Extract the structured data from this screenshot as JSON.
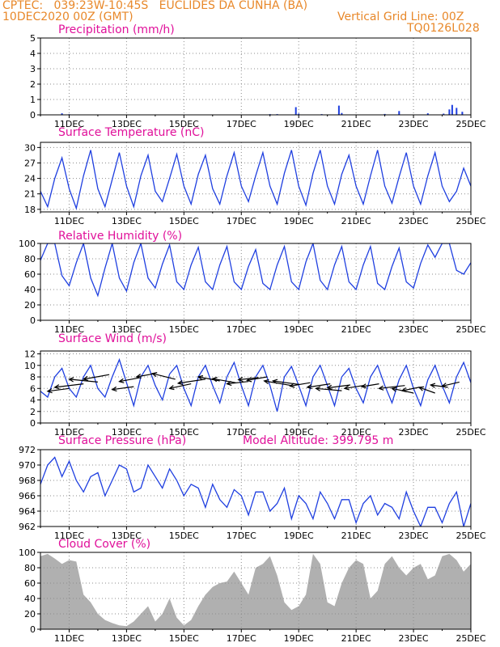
{
  "header": {
    "line1": "CPTEC:   039:23W-10:45S   EUCLIDES DA CUNHA (BA)",
    "line2": "10DEC2020 00Z (GMT)",
    "grid_note": "Vertical Grid Line: 00Z",
    "code": "TQ0126L028",
    "model_altitude": "Model Altitude: 399.795 m"
  },
  "colors": {
    "header": "#e8882a",
    "panel_title": "#e0109a",
    "series": "#1f3fe0",
    "wind_vector": "#000000",
    "cloud_fill": "#b0b0b0",
    "axis": "#000000",
    "grid": "#8c8c8c"
  },
  "chart_data": [
    {
      "id": "precip",
      "type": "bar",
      "title": "Precipitation (mm/h)",
      "ylim": [
        0,
        5
      ],
      "yticks": [
        0,
        1,
        2,
        3,
        4,
        5
      ],
      "xlim": [
        0,
        15
      ],
      "xticks": [
        {
          "x": 1,
          "label": "11DEC"
        },
        {
          "x": 3,
          "label": "13DEC"
        },
        {
          "x": 5,
          "label": "15DEC"
        },
        {
          "x": 7,
          "label": "17DEC"
        },
        {
          "x": 9,
          "label": "19DEC"
        },
        {
          "x": 11,
          "label": "21DEC"
        },
        {
          "x": 13,
          "label": "23DEC"
        },
        {
          "x": 15,
          "label": "25DEC"
        }
      ],
      "bars": [
        [
          0.75,
          0.1
        ],
        [
          1.0,
          0.04
        ],
        [
          8.0,
          0.05
        ],
        [
          8.25,
          0.05
        ],
        [
          8.9,
          0.5
        ],
        [
          9.0,
          0.08
        ],
        [
          9.8,
          0.05
        ],
        [
          10.4,
          0.6
        ],
        [
          10.5,
          0.12
        ],
        [
          12.0,
          0.06
        ],
        [
          12.5,
          0.25
        ],
        [
          13.5,
          0.1
        ],
        [
          14.05,
          0.08
        ],
        [
          14.25,
          0.35
        ],
        [
          14.35,
          0.65
        ],
        [
          14.5,
          0.45
        ],
        [
          14.7,
          0.2
        ]
      ]
    },
    {
      "id": "temp",
      "type": "line",
      "title": "Surface Temperature (nC)",
      "ylim": [
        17.5,
        31
      ],
      "yticks": [
        18,
        21,
        24,
        27,
        30
      ],
      "xlim": [
        0,
        15
      ],
      "xticks": [
        {
          "x": 1,
          "label": "11DEC"
        },
        {
          "x": 3,
          "label": "13DEC"
        },
        {
          "x": 5,
          "label": "15DEC"
        },
        {
          "x": 7,
          "label": "17DEC"
        },
        {
          "x": 9,
          "label": "19DEC"
        },
        {
          "x": 11,
          "label": "21DEC"
        },
        {
          "x": 13,
          "label": "23DEC"
        },
        {
          "x": 15,
          "label": "25DEC"
        }
      ],
      "x": [
        0,
        0.25,
        0.5,
        0.75,
        1.0,
        1.25,
        1.5,
        1.75,
        2.0,
        2.25,
        2.5,
        2.75,
        3.0,
        3.25,
        3.5,
        3.75,
        4.0,
        4.25,
        4.5,
        4.75,
        5.0,
        5.25,
        5.5,
        5.75,
        6.0,
        6.25,
        6.5,
        6.75,
        7.0,
        7.25,
        7.5,
        7.75,
        8.0,
        8.25,
        8.5,
        8.75,
        9.0,
        9.25,
        9.5,
        9.75,
        10.0,
        10.25,
        10.5,
        10.75,
        11.0,
        11.25,
        11.5,
        11.75,
        12.0,
        12.25,
        12.5,
        12.75,
        13.0,
        13.25,
        13.5,
        13.75,
        14.0,
        14.25,
        14.5,
        14.75,
        15.0
      ],
      "y": [
        21.5,
        18.5,
        24,
        28,
        22,
        18.2,
        24.5,
        29.5,
        22,
        18.5,
        23.8,
        29,
        22.5,
        18.5,
        24.5,
        28.5,
        21.5,
        19.5,
        24,
        28.7,
        22.5,
        19,
        24.8,
        28.5,
        22,
        19,
        24.5,
        29,
        22.5,
        19.5,
        24.5,
        29,
        22.5,
        19,
        25,
        29.5,
        22.5,
        18.8,
        25,
        29.5,
        22.5,
        19,
        24.8,
        28.5,
        22.5,
        19,
        24.5,
        29.5,
        22.5,
        19.2,
        24.3,
        29,
        22.5,
        19,
        24.5,
        29,
        22.5,
        19.5,
        21.5,
        26,
        22.5
      ]
    },
    {
      "id": "rh",
      "type": "line",
      "title": "Relative Humidity (%)",
      "ylim": [
        0,
        100
      ],
      "yticks": [
        0,
        20,
        40,
        60,
        80,
        100
      ],
      "xlim": [
        0,
        15
      ],
      "xticks": [
        {
          "x": 1,
          "label": "11DEC"
        },
        {
          "x": 3,
          "label": "13DEC"
        },
        {
          "x": 5,
          "label": "15DEC"
        },
        {
          "x": 7,
          "label": "17DEC"
        },
        {
          "x": 9,
          "label": "19DEC"
        },
        {
          "x": 11,
          "label": "21DEC"
        },
        {
          "x": 13,
          "label": "23DEC"
        },
        {
          "x": 15,
          "label": "25DEC"
        }
      ],
      "x": [
        0,
        0.25,
        0.5,
        0.75,
        1.0,
        1.25,
        1.5,
        1.75,
        2.0,
        2.25,
        2.5,
        2.75,
        3.0,
        3.25,
        3.5,
        3.75,
        4.0,
        4.25,
        4.5,
        4.75,
        5.0,
        5.25,
        5.5,
        5.75,
        6.0,
        6.25,
        6.5,
        6.75,
        7.0,
        7.25,
        7.5,
        7.75,
        8.0,
        8.25,
        8.5,
        8.75,
        9.0,
        9.25,
        9.5,
        9.75,
        10.0,
        10.25,
        10.5,
        10.75,
        11.0,
        11.25,
        11.5,
        11.75,
        12.0,
        12.25,
        12.5,
        12.75,
        13.0,
        13.25,
        13.5,
        13.75,
        14.0,
        14.25,
        14.5,
        14.75,
        15.0
      ],
      "y": [
        78,
        100,
        100,
        58,
        45,
        75,
        100,
        55,
        32,
        68,
        100,
        55,
        38,
        75,
        100,
        55,
        42,
        73,
        98,
        50,
        40,
        72,
        95,
        50,
        40,
        72,
        96,
        50,
        40,
        70,
        92,
        48,
        40,
        72,
        96,
        50,
        40,
        76,
        100,
        52,
        40,
        72,
        96,
        50,
        40,
        72,
        96,
        48,
        40,
        70,
        94,
        50,
        42,
        74,
        98,
        82,
        100,
        100,
        65,
        60,
        75
      ]
    },
    {
      "id": "wind",
      "type": "line",
      "title": "Surface Wind (m/s)",
      "ylim": [
        0,
        12.5
      ],
      "yticks": [
        0,
        2,
        4,
        6,
        8,
        10,
        12
      ],
      "xlim": [
        0,
        15
      ],
      "xticks": [
        {
          "x": 1,
          "label": "11DEC"
        },
        {
          "x": 3,
          "label": "13DEC"
        },
        {
          "x": 5,
          "label": "15DEC"
        },
        {
          "x": 7,
          "label": "17DEC"
        },
        {
          "x": 9,
          "label": "19DEC"
        },
        {
          "x": 11,
          "label": "21DEC"
        },
        {
          "x": 13,
          "label": "23DEC"
        },
        {
          "x": 15,
          "label": "25DEC"
        }
      ],
      "x": [
        0,
        0.25,
        0.5,
        0.75,
        1.0,
        1.25,
        1.5,
        1.75,
        2.0,
        2.25,
        2.5,
        2.75,
        3.0,
        3.25,
        3.5,
        3.75,
        4.0,
        4.25,
        4.5,
        4.75,
        5.0,
        5.25,
        5.5,
        5.75,
        6.0,
        6.25,
        6.5,
        6.75,
        7.0,
        7.25,
        7.5,
        7.75,
        8.0,
        8.25,
        8.5,
        8.75,
        9.0,
        9.25,
        9.5,
        9.75,
        10.0,
        10.25,
        10.5,
        10.75,
        11.0,
        11.25,
        11.5,
        11.75,
        12.0,
        12.25,
        12.5,
        12.75,
        13.0,
        13.25,
        13.5,
        13.75,
        14.0,
        14.25,
        14.5,
        14.75,
        15.0
      ],
      "y": [
        5.5,
        4.5,
        8,
        9.5,
        6,
        4.5,
        8,
        10,
        6,
        4.5,
        8,
        11,
        7,
        3,
        8,
        10,
        6.5,
        4,
        8.5,
        10,
        6,
        3,
        8,
        10,
        6.5,
        3.5,
        8,
        10.5,
        6.5,
        3,
        8,
        10,
        6.5,
        2,
        8,
        9.8,
        6.5,
        3,
        8,
        10,
        6.5,
        3,
        8,
        9.5,
        6,
        3.5,
        8,
        10,
        6.5,
        3.5,
        7.5,
        10,
        6,
        3,
        7.5,
        10,
        6.5,
        3.5,
        8,
        10.5,
        7
      ],
      "vectors": [
        [
          0.25,
          1.0,
          5.5,
          6.0
        ],
        [
          0.5,
          1.5,
          6.2,
          6.8
        ],
        [
          1.0,
          2.0,
          7.6,
          7.1
        ],
        [
          1.5,
          2.4,
          7.6,
          8.4
        ],
        [
          2.5,
          3.25,
          5.8,
          6.3
        ],
        [
          2.75,
          3.5,
          7.2,
          7.9
        ],
        [
          3.35,
          4.0,
          8.0,
          8.6
        ],
        [
          3.9,
          4.7,
          8.6,
          7.6
        ],
        [
          4.5,
          5.25,
          6.0,
          6.8
        ],
        [
          4.8,
          5.75,
          6.9,
          7.6
        ],
        [
          5.5,
          6.25,
          8.0,
          7.3
        ],
        [
          6.0,
          6.8,
          7.7,
          7.0
        ],
        [
          6.5,
          7.25,
          6.8,
          7.2
        ],
        [
          6.9,
          7.6,
          7.5,
          7.9
        ],
        [
          7.2,
          7.9,
          7.4,
          8.0
        ],
        [
          7.8,
          8.75,
          7.3,
          6.5
        ],
        [
          8.1,
          9.0,
          7.3,
          6.7
        ],
        [
          8.7,
          9.4,
          6.4,
          7.0
        ],
        [
          9.3,
          10.1,
          6.2,
          6.8
        ],
        [
          9.6,
          10.5,
          6.0,
          5.6
        ],
        [
          10.0,
          10.8,
          6.1,
          6.6
        ],
        [
          10.6,
          11.25,
          6.0,
          6.5
        ],
        [
          11.2,
          11.8,
          6.3,
          6.8
        ],
        [
          11.8,
          12.7,
          6.0,
          6.5
        ],
        [
          12.25,
          13.0,
          6.0,
          5.2
        ],
        [
          12.6,
          13.2,
          5.6,
          6.2
        ],
        [
          13.2,
          13.75,
          6.2,
          5.2
        ],
        [
          13.6,
          14.2,
          6.6,
          6.2
        ],
        [
          14.0,
          14.6,
          6.4,
          7.1
        ]
      ]
    },
    {
      "id": "pres",
      "type": "line",
      "title": "Surface Pressure (hPa)",
      "ylim": [
        962,
        972
      ],
      "yticks": [
        962,
        964,
        966,
        968,
        970,
        972
      ],
      "xlim": [
        0,
        15
      ],
      "xticks": [
        {
          "x": 1,
          "label": "11DEC"
        },
        {
          "x": 3,
          "label": "13DEC"
        },
        {
          "x": 5,
          "label": "15DEC"
        },
        {
          "x": 7,
          "label": "17DEC"
        },
        {
          "x": 9,
          "label": "19DEC"
        },
        {
          "x": 11,
          "label": "21DEC"
        },
        {
          "x": 13,
          "label": "23DEC"
        },
        {
          "x": 15,
          "label": "25DEC"
        }
      ],
      "x": [
        0,
        0.25,
        0.5,
        0.75,
        1.0,
        1.25,
        1.5,
        1.75,
        2.0,
        2.25,
        2.5,
        2.75,
        3.0,
        3.25,
        3.5,
        3.75,
        4.0,
        4.25,
        4.5,
        4.75,
        5.0,
        5.25,
        5.5,
        5.75,
        6.0,
        6.25,
        6.5,
        6.75,
        7.0,
        7.25,
        7.5,
        7.75,
        8.0,
        8.25,
        8.5,
        8.75,
        9.0,
        9.25,
        9.5,
        9.75,
        10.0,
        10.25,
        10.5,
        10.75,
        11.0,
        11.25,
        11.5,
        11.75,
        12.0,
        12.25,
        12.5,
        12.75,
        13.0,
        13.25,
        13.5,
        13.75,
        14.0,
        14.25,
        14.5,
        14.75,
        15.0
      ],
      "y": [
        967.5,
        970,
        971,
        968.5,
        970.5,
        968,
        966.5,
        968.5,
        969,
        966,
        968,
        970,
        969.5,
        966.5,
        967,
        970,
        968.5,
        967,
        969.5,
        968,
        966,
        967.5,
        967,
        964.5,
        967.5,
        965.5,
        964.5,
        966.8,
        966,
        963.5,
        966.5,
        966.5,
        964,
        965,
        967,
        963,
        966,
        965,
        963,
        966.5,
        965,
        963,
        965.5,
        965.5,
        962.5,
        965,
        966,
        963.5,
        965,
        964.5,
        963,
        966.5,
        964,
        962,
        964.5,
        964.5,
        962.5,
        965,
        966.5,
        962,
        965
      ]
    },
    {
      "id": "cloud",
      "type": "area",
      "title": "Cloud Cover (%)",
      "ylim": [
        0,
        100
      ],
      "yticks": [
        0,
        20,
        40,
        60,
        80,
        100
      ],
      "xlim": [
        0,
        15
      ],
      "xticks": [
        {
          "x": 1,
          "label": "11DEC"
        },
        {
          "x": 3,
          "label": "13DEC"
        },
        {
          "x": 5,
          "label": "15DEC"
        },
        {
          "x": 7,
          "label": "17DEC"
        },
        {
          "x": 9,
          "label": "19DEC"
        },
        {
          "x": 11,
          "label": "21DEC"
        },
        {
          "x": 13,
          "label": "23DEC"
        },
        {
          "x": 15,
          "label": "25DEC"
        }
      ],
      "x": [
        0,
        0.25,
        0.5,
        0.75,
        1.0,
        1.25,
        1.5,
        1.75,
        2.0,
        2.25,
        2.5,
        2.75,
        3.0,
        3.25,
        3.5,
        3.75,
        4.0,
        4.25,
        4.5,
        4.75,
        5.0,
        5.25,
        5.5,
        5.75,
        6.0,
        6.25,
        6.5,
        6.75,
        7.0,
        7.25,
        7.5,
        7.75,
        8.0,
        8.25,
        8.5,
        8.75,
        9.0,
        9.25,
        9.5,
        9.75,
        10.0,
        10.25,
        10.5,
        10.75,
        11.0,
        11.25,
        11.5,
        11.75,
        12.0,
        12.25,
        12.5,
        12.75,
        13.0,
        13.25,
        13.5,
        13.75,
        14.0,
        14.25,
        14.5,
        14.75,
        15.0
      ],
      "y": [
        95,
        98,
        92,
        85,
        90,
        88,
        45,
        35,
        20,
        12,
        8,
        5,
        4,
        10,
        20,
        30,
        10,
        20,
        40,
        15,
        5,
        12,
        30,
        45,
        55,
        60,
        62,
        75,
        60,
        45,
        80,
        85,
        95,
        70,
        35,
        25,
        30,
        45,
        98,
        85,
        35,
        30,
        60,
        80,
        90,
        85,
        40,
        50,
        85,
        95,
        80,
        70,
        80,
        85,
        65,
        70,
        95,
        98,
        90,
        75,
        85
      ]
    }
  ]
}
